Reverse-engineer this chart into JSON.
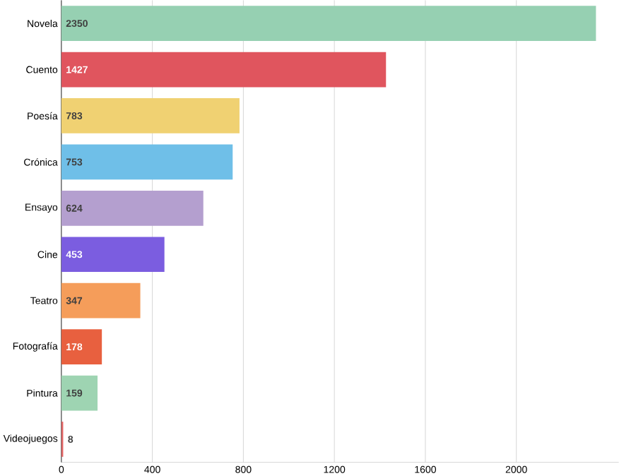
{
  "chart_data": {
    "type": "bar",
    "orientation": "horizontal",
    "categories": [
      "Novela",
      "Cuento",
      "Poesía",
      "Crónica",
      "Ensayo",
      "Cine",
      "Teatro",
      "Fotografía",
      "Pintura",
      "Videojuegos"
    ],
    "values": [
      2350,
      1427,
      783,
      753,
      624,
      453,
      347,
      178,
      159,
      8
    ],
    "colors": [
      "#96d0b2",
      "#e0555e",
      "#f0d172",
      "#6fbfe8",
      "#b49fcf",
      "#7b5de0",
      "#f59d5a",
      "#e8603f",
      "#9ed4b2",
      "#e06464"
    ],
    "xlim": [
      0,
      2450
    ],
    "xticks": [
      0,
      400,
      800,
      1200,
      1600,
      2000
    ],
    "grid": "x",
    "data_labels": true
  }
}
